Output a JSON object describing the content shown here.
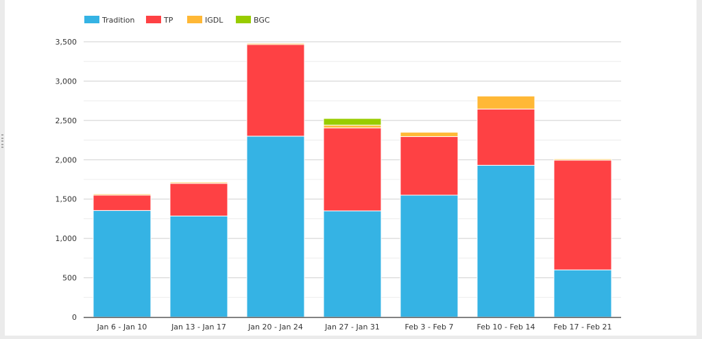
{
  "chart_data": {
    "type": "bar",
    "stacked": true,
    "categories": [
      "Jan 6 - Jan 10",
      "Jan 13 - Jan 17",
      "Jan 20 - Jan 24",
      "Jan 27 - Jan 31",
      "Feb 3 - Feb 7",
      "Feb 10 - Feb 14",
      "Feb 17 - Feb 21"
    ],
    "series": [
      {
        "name": "Tradition",
        "color": "#35b3e4",
        "values": [
          1355,
          1285,
          2300,
          1350,
          1550,
          1930,
          600
        ]
      },
      {
        "name": "TP",
        "color": "#fe4144",
        "values": [
          195,
          415,
          1165,
          1055,
          745,
          715,
          1395
        ]
      },
      {
        "name": "IGDL",
        "color": "#ffb836",
        "values": [
          15,
          15,
          15,
          35,
          55,
          165,
          15
        ]
      },
      {
        "name": "BGC",
        "color": "#98cc00",
        "values": [
          0,
          0,
          0,
          85,
          0,
          0,
          0
        ]
      }
    ],
    "ylim": [
      0,
      3500
    ],
    "yticks": [
      0,
      500,
      1000,
      1500,
      2000,
      2500,
      3000,
      3500
    ],
    "ytick_labels": [
      "0",
      "500",
      "1,000",
      "1,500",
      "2,000",
      "2,500",
      "3,000",
      "3,500"
    ],
    "grid": true,
    "legend_position": "top-left",
    "title": "",
    "xlabel": "",
    "ylabel": ""
  }
}
